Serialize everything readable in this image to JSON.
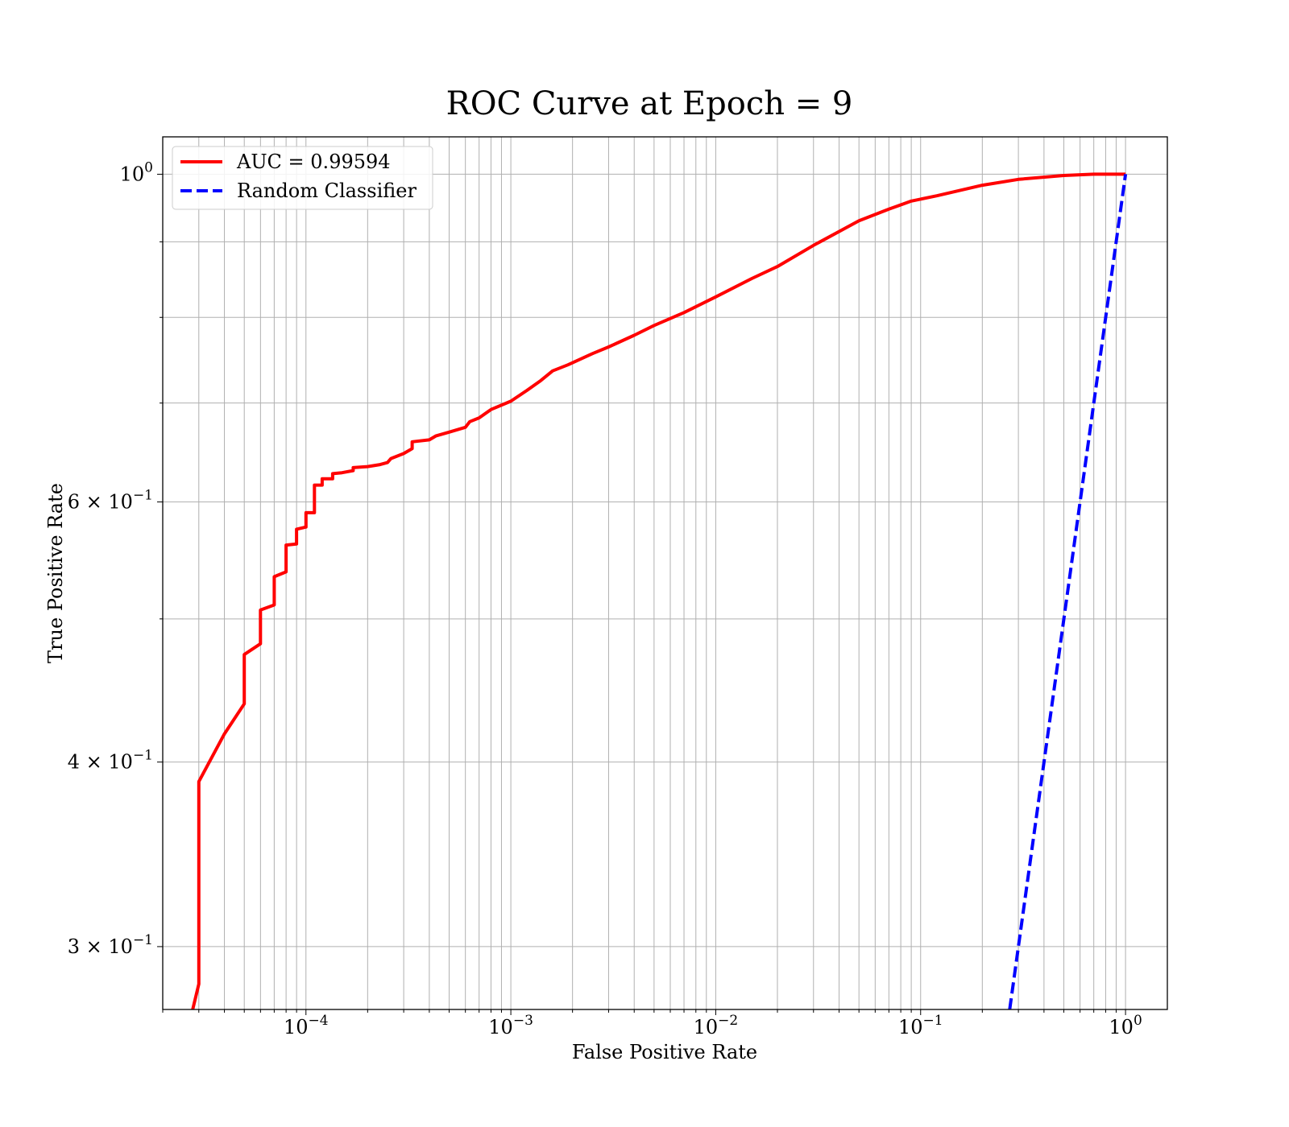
{
  "chart_data": {
    "type": "line",
    "title": "ROC Curve at Epoch = 9",
    "xlabel": "False Positive Rate",
    "ylabel": "True Positive Rate",
    "xscale": "log",
    "yscale": "log",
    "xlim": [
      2e-05,
      1.6
    ],
    "ylim": [
      0.272,
      1.06
    ],
    "grid": true,
    "grid_minor": true,
    "legend_position": "top-left",
    "x_ticks": [
      {
        "value": 0.0001,
        "base": "10",
        "exp": "−4"
      },
      {
        "value": 0.001,
        "base": "10",
        "exp": "−3"
      },
      {
        "value": 0.01,
        "base": "10",
        "exp": "−2"
      },
      {
        "value": 0.1,
        "base": "10",
        "exp": "−1"
      },
      {
        "value": 1,
        "base": "10",
        "exp": "0"
      }
    ],
    "y_ticks": [
      {
        "value": 1,
        "coef": "",
        "base": "10",
        "exp": "0"
      },
      {
        "value": 0.6,
        "coef": "6 × ",
        "base": "10",
        "exp": "−1"
      },
      {
        "value": 0.4,
        "coef": "4 × ",
        "base": "10",
        "exp": "−1"
      },
      {
        "value": 0.3,
        "coef": "3 × ",
        "base": "10",
        "exp": "−1"
      }
    ],
    "y_minor_grid": [
      0.5,
      0.7,
      0.8,
      0.9
    ],
    "series": [
      {
        "name": "AUC = 0.99594",
        "color": "#ff0000",
        "dash": "solid",
        "points": [
          [
            2.8e-05,
            0.272
          ],
          [
            3e-05,
            0.283
          ],
          [
            3e-05,
            0.388
          ],
          [
            4e-05,
            0.418
          ],
          [
            5e-05,
            0.438
          ],
          [
            5e-05,
            0.473
          ],
          [
            6e-05,
            0.481
          ],
          [
            6e-05,
            0.507
          ],
          [
            7e-05,
            0.511
          ],
          [
            7e-05,
            0.534
          ],
          [
            8e-05,
            0.538
          ],
          [
            8e-05,
            0.561
          ],
          [
            9e-05,
            0.562
          ],
          [
            9e-05,
            0.575
          ],
          [
            0.0001,
            0.577
          ],
          [
            0.0001,
            0.59
          ],
          [
            0.00011,
            0.59
          ],
          [
            0.00011,
            0.616
          ],
          [
            0.00012,
            0.616
          ],
          [
            0.00012,
            0.622
          ],
          [
            0.000135,
            0.622
          ],
          [
            0.000135,
            0.627
          ],
          [
            0.00015,
            0.628
          ],
          [
            0.00017,
            0.63
          ],
          [
            0.00017,
            0.633
          ],
          [
            0.0002,
            0.634
          ],
          [
            0.00023,
            0.636
          ],
          [
            0.00025,
            0.638
          ],
          [
            0.00026,
            0.642
          ],
          [
            0.0003,
            0.647
          ],
          [
            0.00033,
            0.652
          ],
          [
            0.00033,
            0.659
          ],
          [
            0.0004,
            0.661
          ],
          [
            0.00043,
            0.665
          ],
          [
            0.0005,
            0.669
          ],
          [
            0.0006,
            0.674
          ],
          [
            0.00063,
            0.68
          ],
          [
            0.0007,
            0.684
          ],
          [
            0.0008,
            0.693
          ],
          [
            0.001,
            0.702
          ],
          [
            0.0012,
            0.714
          ],
          [
            0.0014,
            0.725
          ],
          [
            0.0016,
            0.736
          ],
          [
            0.0019,
            0.743
          ],
          [
            0.0025,
            0.756
          ],
          [
            0.003,
            0.764
          ],
          [
            0.004,
            0.778
          ],
          [
            0.005,
            0.79
          ],
          [
            0.007,
            0.806
          ],
          [
            0.01,
            0.826
          ],
          [
            0.015,
            0.85
          ],
          [
            0.02,
            0.866
          ],
          [
            0.03,
            0.895
          ],
          [
            0.05,
            0.93
          ],
          [
            0.07,
            0.947
          ],
          [
            0.09,
            0.959
          ],
          [
            0.12,
            0.967
          ],
          [
            0.2,
            0.983
          ],
          [
            0.3,
            0.992
          ],
          [
            0.5,
            0.998
          ],
          [
            0.7,
            1.0
          ],
          [
            1.0,
            1.0
          ]
        ]
      },
      {
        "name": "Random Classifier",
        "color": "#0000ff",
        "dash": "dashed",
        "points": [
          [
            0.272,
            0.272
          ],
          [
            1.0,
            1.0
          ]
        ]
      }
    ]
  }
}
